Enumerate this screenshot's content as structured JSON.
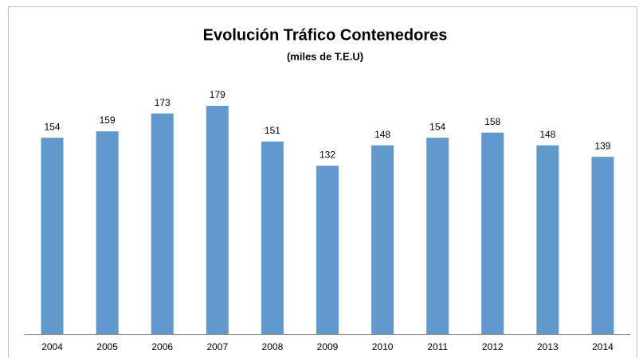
{
  "chart_data": {
    "type": "bar",
    "title": "Evolución Tráfico Contenedores",
    "subtitle": "(miles de T.E.U)",
    "categories": [
      "2004",
      "2005",
      "2006",
      "2007",
      "2008",
      "2009",
      "2010",
      "2011",
      "2012",
      "2013",
      "2014"
    ],
    "values": [
      154,
      159,
      173,
      179,
      151,
      132,
      148,
      154,
      158,
      148,
      139
    ],
    "color": "#6199cd"
  }
}
